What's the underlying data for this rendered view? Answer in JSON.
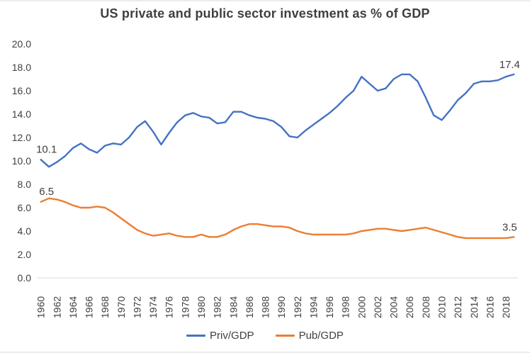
{
  "chart_data": {
    "type": "line",
    "title": "US private and public sector investment as % of GDP",
    "xlabel": "",
    "ylabel": "",
    "ylim": [
      0.0,
      20.0
    ],
    "y_tick_labels": [
      "0.0",
      "2.0",
      "4.0",
      "6.0",
      "8.0",
      "10.0",
      "12.0",
      "14.0",
      "16.0",
      "18.0",
      "20.0"
    ],
    "grid": false,
    "legend_position": "bottom",
    "x_tick_step": 2,
    "years": [
      1960,
      1961,
      1962,
      1963,
      1964,
      1965,
      1966,
      1967,
      1968,
      1969,
      1970,
      1971,
      1972,
      1973,
      1974,
      1975,
      1976,
      1977,
      1978,
      1979,
      1980,
      1981,
      1982,
      1983,
      1984,
      1985,
      1986,
      1987,
      1988,
      1989,
      1990,
      1991,
      1992,
      1993,
      1994,
      1995,
      1996,
      1997,
      1998,
      1999,
      2000,
      2001,
      2002,
      2003,
      2004,
      2005,
      2006,
      2007,
      2008,
      2009,
      2010,
      2011,
      2012,
      2013,
      2014,
      2015,
      2016,
      2017,
      2018,
      2019
    ],
    "x_tick_labels": [
      "1960",
      "1962",
      "1964",
      "1966",
      "1968",
      "1970",
      "1972",
      "1974",
      "1976",
      "1978",
      "1980",
      "1982",
      "1984",
      "1986",
      "1988",
      "1990",
      "1992",
      "1994",
      "1996",
      "1998",
      "2000",
      "2002",
      "2004",
      "2006",
      "2008",
      "2010",
      "2012",
      "2014",
      "2016",
      "2018"
    ],
    "series": [
      {
        "name": "Priv/GDP",
        "color": "#4472C4",
        "first_point_label": "10.1",
        "last_point_label": "17.4",
        "values": [
          10.1,
          9.5,
          9.9,
          10.4,
          11.1,
          11.5,
          11.0,
          10.7,
          11.3,
          11.5,
          11.4,
          12.0,
          12.9,
          13.4,
          12.5,
          11.4,
          12.4,
          13.3,
          13.9,
          14.1,
          13.8,
          13.7,
          13.2,
          13.3,
          14.2,
          14.2,
          13.9,
          13.7,
          13.6,
          13.4,
          12.9,
          12.1,
          12.0,
          12.6,
          13.1,
          13.6,
          14.1,
          14.7,
          15.4,
          16.0,
          17.2,
          16.6,
          16.0,
          16.2,
          17.0,
          17.4,
          17.4,
          16.8,
          15.4,
          13.9,
          13.5,
          14.3,
          15.2,
          15.8,
          16.6,
          16.8,
          16.8,
          16.9,
          17.2,
          17.4
        ]
      },
      {
        "name": "Pub/GDP",
        "color": "#ED7D31",
        "first_point_label": "6.5",
        "last_point_label": "3.5",
        "values": [
          6.5,
          6.8,
          6.7,
          6.5,
          6.2,
          6.0,
          6.0,
          6.1,
          6.0,
          5.6,
          5.1,
          4.6,
          4.1,
          3.8,
          3.6,
          3.7,
          3.8,
          3.6,
          3.5,
          3.5,
          3.7,
          3.5,
          3.5,
          3.7,
          4.1,
          4.4,
          4.6,
          4.6,
          4.5,
          4.4,
          4.4,
          4.3,
          4.0,
          3.8,
          3.7,
          3.7,
          3.7,
          3.7,
          3.7,
          3.8,
          4.0,
          4.1,
          4.2,
          4.2,
          4.1,
          4.0,
          4.1,
          4.2,
          4.3,
          4.1,
          3.9,
          3.7,
          3.5,
          3.4,
          3.4,
          3.4,
          3.4,
          3.4,
          3.4,
          3.5
        ]
      }
    ],
    "axis_color": "#D9D9D9",
    "tick_label_color": "#404040"
  }
}
